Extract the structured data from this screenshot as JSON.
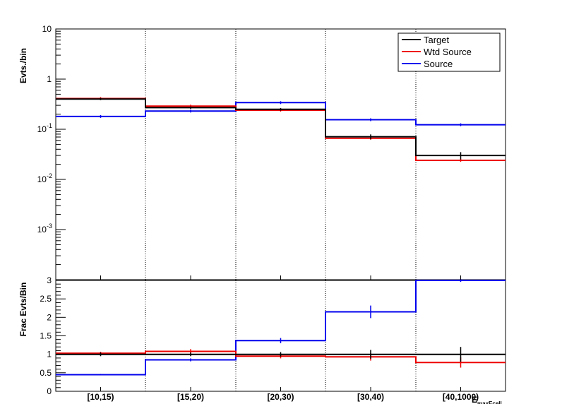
{
  "chart_data": [
    {
      "type": "line",
      "panel": "upper",
      "ylabel": "Evts./bin",
      "yscale": "log",
      "ylim": [
        0.0001,
        10
      ],
      "yticks": [
        {
          "value": 10,
          "label": "10"
        },
        {
          "value": 1,
          "label": "1"
        },
        {
          "value": 0.1,
          "label": "10",
          "exp": "-1"
        },
        {
          "value": 0.01,
          "label": "10",
          "exp": "-2"
        },
        {
          "value": 0.001,
          "label": "10",
          "exp": "-3"
        }
      ],
      "categories": [
        "[10,15)",
        "[15,20)",
        "[20,30)",
        "[30,40)",
        "[40,1000)"
      ],
      "legend_position": "top-right",
      "series": [
        {
          "name": "Target",
          "color": "#000000",
          "values": [
            0.4,
            0.27,
            0.25,
            0.071,
            0.03
          ],
          "errors": [
            0.02,
            0.015,
            0.015,
            0.008,
            0.005
          ]
        },
        {
          "name": "Wtd Source",
          "color": "#ee0000",
          "values": [
            0.41,
            0.29,
            0.24,
            0.066,
            0.024
          ],
          "errors": [
            0.0,
            0.0,
            0.0,
            0.0,
            0.0
          ]
        },
        {
          "name": "Source",
          "color": "#0000ee",
          "values": [
            0.18,
            0.23,
            0.34,
            0.155,
            0.123
          ],
          "errors": [
            0.0,
            0.0,
            0.0,
            0.0,
            0.0
          ]
        }
      ]
    },
    {
      "type": "line",
      "panel": "lower",
      "ylabel": "Frac Evts/Bin",
      "ylim": [
        0,
        3
      ],
      "yticks": [
        {
          "value": 0,
          "label": "0"
        },
        {
          "value": 0.5,
          "label": "0.5"
        },
        {
          "value": 1,
          "label": "1"
        },
        {
          "value": 1.5,
          "label": "1.5"
        },
        {
          "value": 2,
          "label": "2"
        },
        {
          "value": 2.5,
          "label": "2.5"
        },
        {
          "value": 3,
          "label": "3"
        }
      ],
      "categories": [
        "[10,15)",
        "[15,20)",
        "[20,30)",
        "[30,40)",
        "[40,1000)"
      ],
      "xlabel": "E",
      "xlabel_sub": "maxEcell",
      "series": [
        {
          "name": "Target",
          "color": "#000000",
          "values": [
            1.0,
            1.0,
            1.0,
            1.0,
            1.0
          ],
          "errors": [
            0.05,
            0.05,
            0.06,
            0.12,
            0.2
          ]
        },
        {
          "name": "Wtd Source",
          "color": "#ee0000",
          "values": [
            1.03,
            1.08,
            0.95,
            0.93,
            0.78
          ],
          "errors": [
            0.04,
            0.06,
            0.06,
            0.1,
            0.14
          ]
        },
        {
          "name": "Source",
          "color": "#0000ee",
          "values": [
            0.45,
            0.85,
            1.37,
            2.15,
            3.0
          ],
          "errors": [
            0.02,
            0.04,
            0.07,
            0.17,
            0.0
          ]
        }
      ]
    }
  ]
}
